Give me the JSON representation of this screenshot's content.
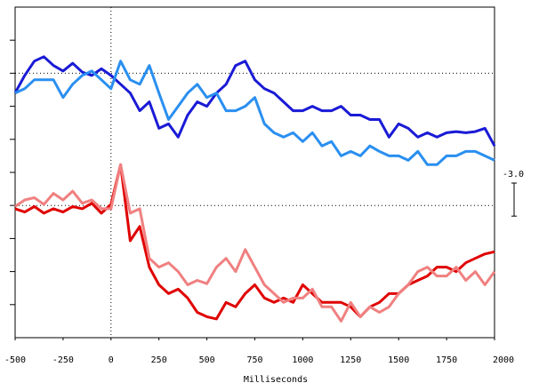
{
  "chart_data": {
    "type": "line",
    "xlabel": "Milliseconds",
    "x": [
      -500,
      -450,
      -400,
      -350,
      -300,
      -250,
      -200,
      -150,
      -100,
      -50,
      0,
      50,
      100,
      150,
      200,
      250,
      300,
      350,
      400,
      450,
      500,
      550,
      600,
      650,
      700,
      750,
      800,
      850,
      900,
      950,
      1000,
      1050,
      1100,
      1150,
      1200,
      1250,
      1300,
      1350,
      1400,
      1450,
      1500,
      1550,
      1600,
      1650,
      1700,
      1750,
      1800,
      1850,
      1900,
      1950,
      2000
    ],
    "series": [
      {
        "color": "#1a1ad6",
        "values": [
          7.2,
          8.8,
          10.1,
          10.5,
          9.7,
          9.2,
          9.9,
          9.1,
          8.8,
          9.4,
          8.8,
          8.0,
          7.2,
          5.6,
          6.4,
          4.0,
          4.4,
          3.2,
          5.2,
          6.4,
          6.0,
          7.2,
          8.0,
          9.7,
          10.1,
          8.4,
          7.6,
          7.2,
          6.4,
          5.6,
          5.6,
          6.0,
          5.6,
          5.6,
          6.0,
          5.2,
          5.2,
          4.8,
          4.8,
          3.2,
          4.4,
          4.0,
          3.2,
          3.6,
          3.2,
          3.6,
          3.7,
          3.6,
          3.7,
          4.0,
          2.4
        ]
      },
      {
        "color": "#2a8ff0",
        "values": [
          7.2,
          7.6,
          8.4,
          8.4,
          8.4,
          6.8,
          8.0,
          8.8,
          9.2,
          8.4,
          7.6,
          10.1,
          8.4,
          8.0,
          9.7,
          7.2,
          4.8,
          6.0,
          7.2,
          8.0,
          6.8,
          7.2,
          5.6,
          5.6,
          6.0,
          6.8,
          4.4,
          3.6,
          3.2,
          3.6,
          2.8,
          3.6,
          2.4,
          2.8,
          1.5,
          1.9,
          1.5,
          2.4,
          1.9,
          1.5,
          1.5,
          1.1,
          1.9,
          0.7,
          0.7,
          1.5,
          1.5,
          1.9,
          1.9,
          1.5,
          1.1
        ]
      },
      {
        "color": "#e00000",
        "values": [
          -3.3,
          -3.6,
          -3.1,
          -3.7,
          -3.3,
          -3.6,
          -3.1,
          -3.3,
          -2.8,
          -3.7,
          -2.9,
          0.7,
          -6.2,
          -4.9,
          -8.6,
          -10.2,
          -11.0,
          -10.6,
          -11.4,
          -12.7,
          -13.1,
          -13.3,
          -11.8,
          -12.2,
          -11.0,
          -10.2,
          -11.4,
          -11.8,
          -11.4,
          -11.8,
          -10.2,
          -11.0,
          -11.8,
          -11.8,
          -11.8,
          -12.2,
          -13.1,
          -12.2,
          -11.8,
          -11.0,
          -11.0,
          -10.2,
          -9.8,
          -9.4,
          -8.6,
          -8.6,
          -9.0,
          -8.2,
          -7.8,
          -7.4,
          -7.2
        ]
      },
      {
        "color": "#f08080",
        "values": [
          -3.1,
          -2.5,
          -2.3,
          -2.9,
          -1.9,
          -2.5,
          -1.7,
          -2.8,
          -2.5,
          -3.3,
          -3.3,
          0.7,
          -3.7,
          -3.3,
          -7.8,
          -8.6,
          -8.2,
          -9.0,
          -10.2,
          -9.8,
          -10.1,
          -8.6,
          -7.8,
          -9.0,
          -7.0,
          -8.6,
          -10.2,
          -11.0,
          -11.8,
          -11.4,
          -11.4,
          -10.6,
          -12.2,
          -12.2,
          -13.5,
          -11.8,
          -13.1,
          -12.2,
          -12.7,
          -12.2,
          -11.0,
          -10.2,
          -9.0,
          -8.6,
          -9.4,
          -9.4,
          -8.6,
          -9.8,
          -9.0,
          -10.2,
          -9.0
        ]
      }
    ],
    "xlim": [
      -500,
      2000
    ],
    "xticks": [
      -500,
      -250,
      0,
      250,
      500,
      750,
      1000,
      1250,
      1500,
      1750,
      2000
    ],
    "ylim": [
      -15,
      15
    ],
    "yticks": [
      -12,
      -9,
      -6,
      -3,
      0,
      3,
      6,
      9,
      12
    ],
    "reference_lines": [
      9,
      -3
    ],
    "x_reference": 0,
    "scale_bar": {
      "value": -3.0,
      "label": "-3.0"
    }
  }
}
